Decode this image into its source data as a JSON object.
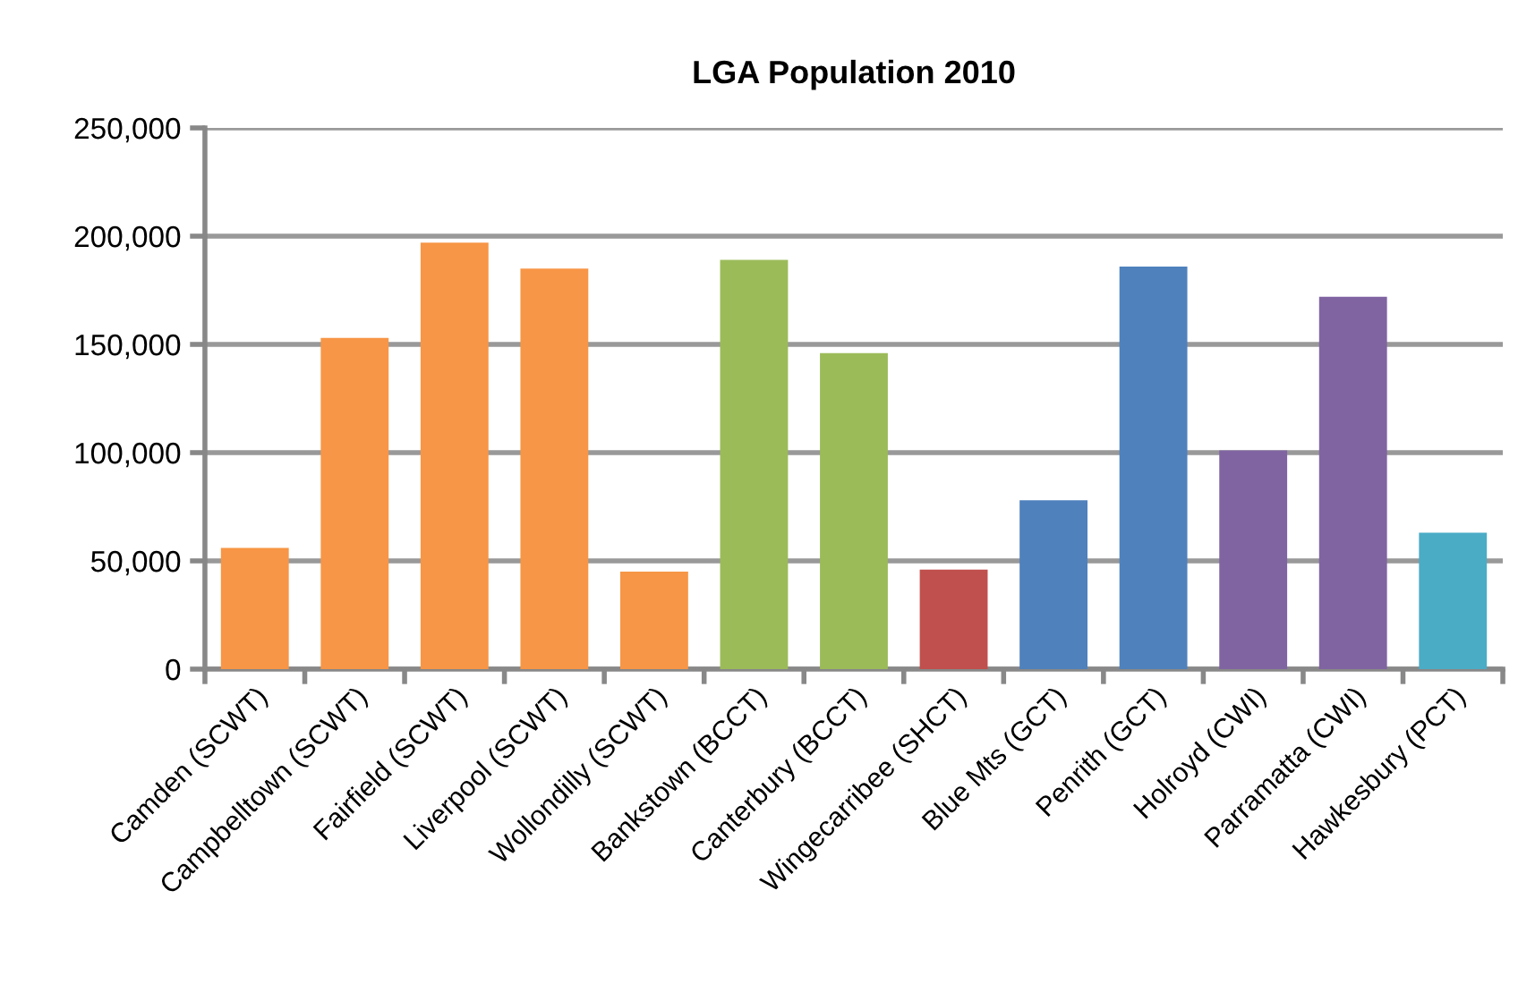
{
  "chart_data": {
    "type": "bar",
    "title": "LGA Population 2010",
    "categories": [
      "Camden (SCWT)",
      "Campbelltown (SCWT)",
      "Fairfield (SCWT)",
      "Liverpool (SCWT)",
      "Wollondilly (SCWT)",
      "Bankstown (BCCT)",
      "Canterbury (BCCT)",
      "Wingecarribee (SHCT)",
      "Blue Mts (GCT)",
      "Penrith (GCT)",
      "Holroyd (CWI)",
      "Parramatta (CWI)",
      "Hawkesbury (PCT)"
    ],
    "values": [
      56000,
      153000,
      197000,
      185000,
      45000,
      189000,
      146000,
      46000,
      78000,
      186000,
      101000,
      172000,
      63000
    ],
    "colors": [
      "#f79646",
      "#f79646",
      "#f79646",
      "#f79646",
      "#f79646",
      "#9bbb59",
      "#9bbb59",
      "#c0504d",
      "#4f81bd",
      "#4f81bd",
      "#8064a2",
      "#8064a2",
      "#4bacc6"
    ],
    "ylim": [
      0,
      250000
    ],
    "yticks": [
      {
        "value": 0,
        "label": "0"
      },
      {
        "value": 50000,
        "label": "50,000"
      },
      {
        "value": 100000,
        "label": "100,000"
      },
      {
        "value": 150000,
        "label": "150,000"
      },
      {
        "value": 200000,
        "label": "200,000"
      },
      {
        "value": 250000,
        "label": "250,000"
      }
    ],
    "grid": "y",
    "legend": false
  }
}
